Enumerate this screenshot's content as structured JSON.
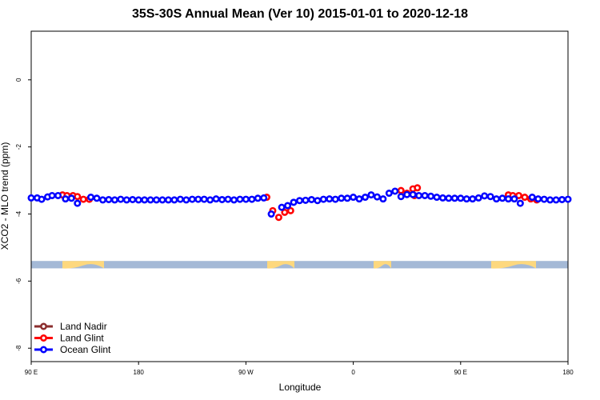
{
  "chart_data": {
    "type": "scatter",
    "title": "35S-30S Annual Mean (Ver 10)   2015-01-01 to 2020-12-18",
    "xlabel": "Longitude",
    "ylabel": "XCO2 - MLO trend (ppm)",
    "xlim": [
      90,
      450
    ],
    "ylim": [
      -8.4,
      1.45
    ],
    "x_ticks": [
      {
        "value": 90,
        "label": "90 E"
      },
      {
        "value": 162,
        "label": "180"
      },
      {
        "value": 234,
        "label": "90 W"
      },
      {
        "value": 306,
        "label": "0"
      },
      {
        "value": 378,
        "label": "90 E"
      },
      {
        "value": 450,
        "label": "180"
      }
    ],
    "y_ticks": [
      {
        "value": 0,
        "label": "0"
      },
      {
        "value": -2,
        "label": "-2"
      },
      {
        "value": -4,
        "label": "-4"
      },
      {
        "value": -6,
        "label": "-6"
      },
      {
        "value": -8,
        "label": "-8"
      }
    ],
    "grid": false,
    "legend_position": "bottom-left",
    "series": [
      {
        "name": "Land Nadir",
        "color": "#8b2e2e",
        "points": []
      },
      {
        "name": "Land Glint",
        "color": "#ff0000",
        "points": [
          [
            111,
            -3.43
          ],
          [
            114,
            -3.45
          ],
          [
            118,
            -3.45
          ],
          [
            121,
            -3.48
          ],
          [
            125,
            -3.56
          ],
          [
            129,
            -3.56
          ],
          [
            248,
            -3.5
          ],
          [
            252,
            -3.9
          ],
          [
            256,
            -4.1
          ],
          [
            260,
            -3.95
          ],
          [
            264,
            -3.9
          ],
          [
            338,
            -3.3
          ],
          [
            342,
            -3.38
          ],
          [
            346,
            -3.25
          ],
          [
            349,
            -3.22
          ],
          [
            347,
            -3.45
          ],
          [
            410,
            -3.43
          ],
          [
            413,
            -3.45
          ],
          [
            417,
            -3.45
          ],
          [
            421,
            -3.5
          ],
          [
            425,
            -3.55
          ],
          [
            429,
            -3.58
          ]
        ]
      },
      {
        "name": "Ocean Glint",
        "color": "#0000ff",
        "points": [
          [
            90,
            -3.52
          ],
          [
            94,
            -3.52
          ],
          [
            97,
            -3.56
          ],
          [
            101,
            -3.49
          ],
          [
            104,
            -3.45
          ],
          [
            108,
            -3.45
          ],
          [
            113,
            -3.55
          ],
          [
            117,
            -3.53
          ],
          [
            121,
            -3.68
          ],
          [
            130,
            -3.5
          ],
          [
            134,
            -3.53
          ],
          [
            138,
            -3.58
          ],
          [
            142,
            -3.57
          ],
          [
            146,
            -3.58
          ],
          [
            150,
            -3.56
          ],
          [
            154,
            -3.58
          ],
          [
            158,
            -3.57
          ],
          [
            162,
            -3.58
          ],
          [
            166,
            -3.58
          ],
          [
            170,
            -3.58
          ],
          [
            174,
            -3.58
          ],
          [
            178,
            -3.58
          ],
          [
            182,
            -3.58
          ],
          [
            186,
            -3.58
          ],
          [
            190,
            -3.56
          ],
          [
            194,
            -3.58
          ],
          [
            198,
            -3.56
          ],
          [
            202,
            -3.56
          ],
          [
            206,
            -3.56
          ],
          [
            210,
            -3.58
          ],
          [
            214,
            -3.55
          ],
          [
            218,
            -3.57
          ],
          [
            222,
            -3.56
          ],
          [
            226,
            -3.58
          ],
          [
            230,
            -3.56
          ],
          [
            234,
            -3.56
          ],
          [
            238,
            -3.56
          ],
          [
            242,
            -3.53
          ],
          [
            246,
            -3.52
          ],
          [
            251,
            -4.0
          ],
          [
            258,
            -3.8
          ],
          [
            262,
            -3.75
          ],
          [
            266,
            -3.65
          ],
          [
            270,
            -3.6
          ],
          [
            274,
            -3.59
          ],
          [
            278,
            -3.57
          ],
          [
            282,
            -3.6
          ],
          [
            286,
            -3.56
          ],
          [
            290,
            -3.55
          ],
          [
            294,
            -3.56
          ],
          [
            298,
            -3.53
          ],
          [
            302,
            -3.53
          ],
          [
            306,
            -3.5
          ],
          [
            310,
            -3.55
          ],
          [
            314,
            -3.5
          ],
          [
            318,
            -3.43
          ],
          [
            322,
            -3.49
          ],
          [
            326,
            -3.55
          ],
          [
            330,
            -3.38
          ],
          [
            334,
            -3.32
          ],
          [
            338,
            -3.48
          ],
          [
            342,
            -3.42
          ],
          [
            346,
            -3.42
          ],
          [
            350,
            -3.45
          ],
          [
            354,
            -3.45
          ],
          [
            358,
            -3.47
          ],
          [
            362,
            -3.5
          ],
          [
            366,
            -3.52
          ],
          [
            370,
            -3.53
          ],
          [
            374,
            -3.53
          ],
          [
            378,
            -3.53
          ],
          [
            382,
            -3.55
          ],
          [
            386,
            -3.55
          ],
          [
            390,
            -3.52
          ],
          [
            394,
            -3.46
          ],
          [
            398,
            -3.48
          ],
          [
            402,
            -3.55
          ],
          [
            406,
            -3.53
          ],
          [
            410,
            -3.55
          ],
          [
            414,
            -3.55
          ],
          [
            418,
            -3.68
          ],
          [
            426,
            -3.5
          ],
          [
            430,
            -3.55
          ],
          [
            434,
            -3.56
          ],
          [
            438,
            -3.58
          ],
          [
            442,
            -3.58
          ],
          [
            446,
            -3.57
          ],
          [
            450,
            -3.56
          ]
        ]
      }
    ],
    "land_ocean_strip": {
      "y_range": [
        -5.62,
        -5.4
      ],
      "ocean_color": "#a4b9d6",
      "land_color": "#fdd87e"
    }
  }
}
